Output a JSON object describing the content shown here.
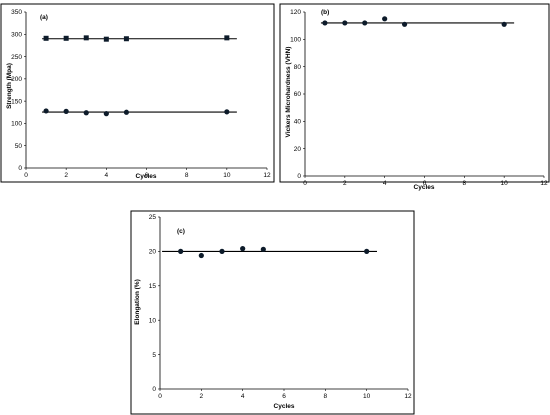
{
  "chart_data": [
    {
      "type": "scatter",
      "panel_label": "(a)",
      "xlabel": "Cycles",
      "ylabel": "Strength (Mpa)",
      "xlim": [
        0,
        12
      ],
      "ylim": [
        0,
        350
      ],
      "xticks": [
        0,
        2,
        4,
        6,
        8,
        10,
        12
      ],
      "yticks": [
        0,
        50,
        100,
        150,
        200,
        250,
        300,
        350
      ],
      "series": [
        {
          "marker": "square",
          "x": [
            1,
            2,
            3,
            4,
            5,
            10
          ],
          "y": [
            291,
            291,
            292,
            289,
            290,
            292
          ],
          "trendline": {
            "x": [
              0.8,
              10.5
            ],
            "y": [
              290,
              290
            ]
          }
        },
        {
          "marker": "circle",
          "x": [
            1,
            2,
            3,
            4,
            5,
            10
          ],
          "y": [
            128,
            127,
            124,
            122,
            125,
            126
          ],
          "trendline": {
            "x": [
              0.8,
              10.5
            ],
            "y": [
              125.5,
              125.5
            ]
          }
        }
      ],
      "grid": false,
      "legend": "none"
    },
    {
      "type": "scatter",
      "panel_label": "(b)",
      "xlabel": "Cycles",
      "ylabel": "Vickers Microhardness (VHN)",
      "xlim": [
        0,
        12
      ],
      "ylim": [
        0,
        120
      ],
      "xticks": [
        0,
        2,
        4,
        6,
        8,
        10,
        12
      ],
      "yticks": [
        0,
        20,
        40,
        60,
        80,
        100,
        120
      ],
      "series": [
        {
          "marker": "circle",
          "x": [
            1,
            2,
            3,
            4,
            5,
            10
          ],
          "y": [
            112,
            112,
            112,
            115,
            111,
            111
          ],
          "trendline": {
            "x": [
              0.8,
              10.5
            ],
            "y": [
              112,
              112
            ]
          }
        }
      ],
      "grid": false,
      "legend": "none"
    },
    {
      "type": "scatter",
      "panel_label": "(c)",
      "xlabel": "Cycles",
      "ylabel": "Elongation (%)",
      "xlim": [
        0,
        12
      ],
      "ylim": [
        0,
        25
      ],
      "xticks": [
        0,
        2,
        4,
        6,
        8,
        10,
        12
      ],
      "yticks": [
        0,
        5,
        10,
        15,
        20,
        25
      ],
      "series": [
        {
          "marker": "circle",
          "x": [
            1,
            2,
            3,
            4,
            5,
            10
          ],
          "y": [
            20,
            19.4,
            20,
            20.4,
            20.3,
            20
          ],
          "trendline": {
            "x": [
              0.1,
              10.5
            ],
            "y": [
              20,
              20
            ]
          }
        }
      ],
      "grid": false,
      "legend": "none"
    }
  ],
  "colors": {
    "marker_fill": "#0d1b2a",
    "axis": "#000000",
    "frame": "#000000",
    "background": "#ffffff"
  }
}
